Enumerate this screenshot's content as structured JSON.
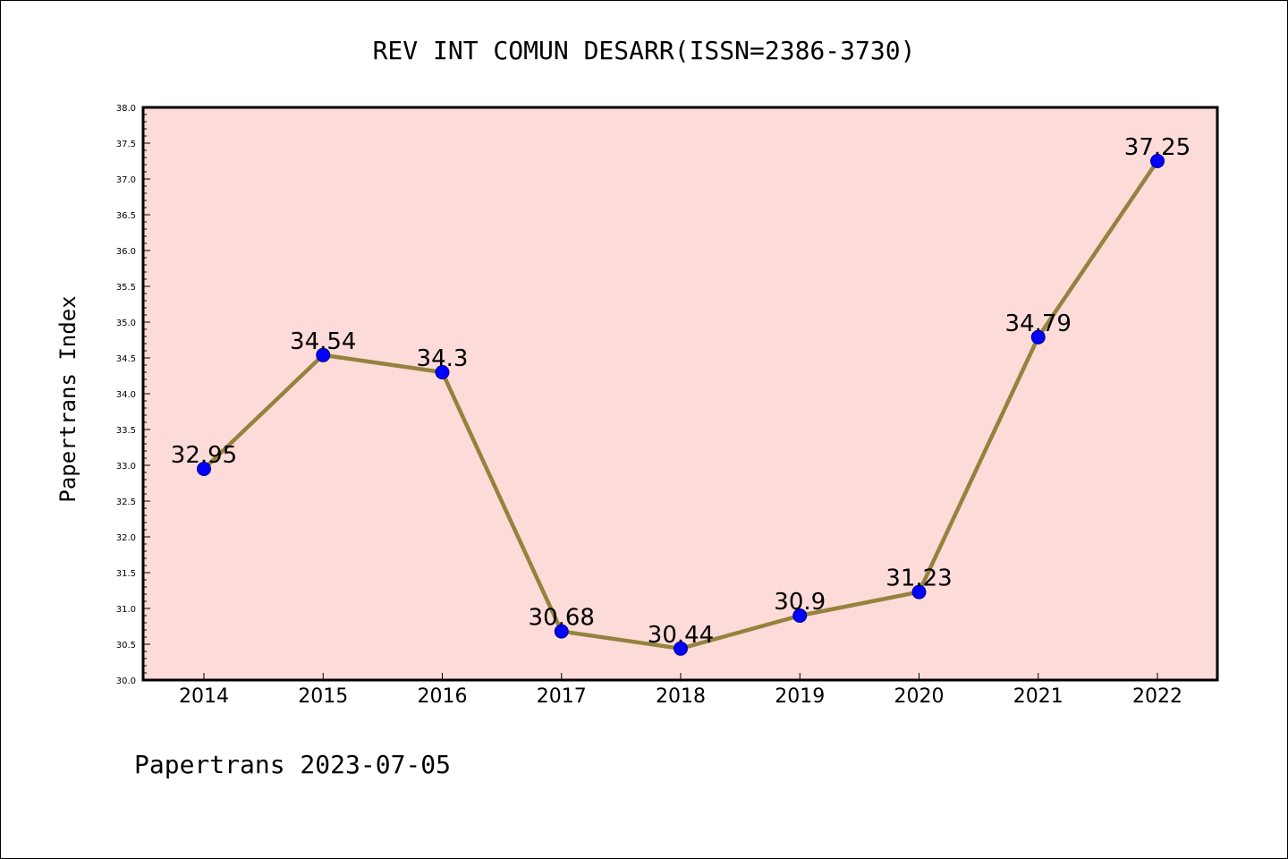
{
  "chart_data": {
    "type": "line",
    "title": "REV INT COMUN DESARR(ISSN=2386-3730)",
    "ylabel": "Papertrans Index",
    "xlabel": "",
    "categories": [
      "2014",
      "2015",
      "2016",
      "2017",
      "2018",
      "2019",
      "2020",
      "2021",
      "2022"
    ],
    "series": [
      {
        "values": [
          32.95,
          34.54,
          34.3,
          30.68,
          30.44,
          30.9,
          31.23,
          34.79,
          37.25
        ],
        "data_labels": [
          "32.95",
          "34.54",
          "34.3",
          "30.68",
          "30.44",
          "30.9",
          "31.23",
          "34.79",
          "37.25"
        ]
      }
    ],
    "ylim": [
      30.0,
      38.0
    ],
    "yticks": [
      "30.0",
      "30.5",
      "31.0",
      "31.5",
      "32.0",
      "32.5",
      "33.0",
      "33.5",
      "34.0",
      "34.5",
      "35.0",
      "35.5",
      "36.0",
      "36.5",
      "37.0",
      "37.5",
      "38.0"
    ],
    "grid": false,
    "legend": "none",
    "colors": {
      "plot_background": "#fddbd8",
      "line": "#94823e",
      "marker": "#0000ff",
      "marker_edge": "#00008b",
      "text": "#000000"
    },
    "footer": "Papertrans 2023-07-05"
  }
}
